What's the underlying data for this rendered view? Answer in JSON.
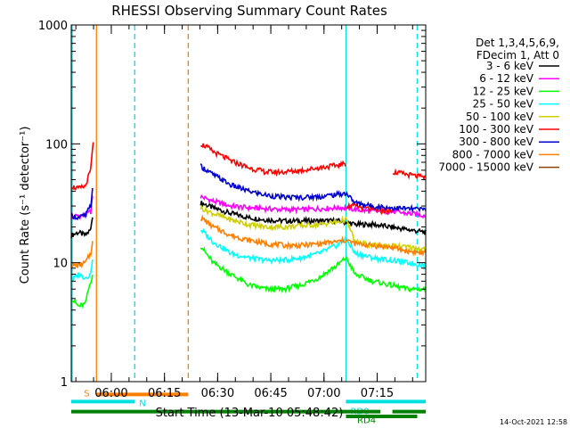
{
  "chart_data": {
    "type": "line",
    "title": "RHESSI Observing Summary Count Rates",
    "xlabel": "Start Time (13-Mar-10 05:48:42)",
    "ylabel": "Count Rate (s⁻¹ detector⁻¹)",
    "y_scale": "log",
    "ylim": [
      1,
      1000
    ],
    "xlim_minutes_from_start": [
      0,
      100
    ],
    "x_ticks": [
      {
        "label": "06:00",
        "t": 11.3
      },
      {
        "label": "06:15",
        "t": 26.3
      },
      {
        "label": "06:30",
        "t": 41.3
      },
      {
        "label": "06:45",
        "t": 56.3
      },
      {
        "label": "07:00",
        "t": 71.3
      },
      {
        "label": "07:15",
        "t": 86.3
      }
    ],
    "y_ticks": [
      {
        "label": "1",
        "value": 1
      },
      {
        "label": "10",
        "value": 10
      },
      {
        "label": "100",
        "value": 100
      },
      {
        "label": "1000",
        "value": 1000
      }
    ],
    "legend_header": [
      "Det 1,3,4,5,6,9,",
      "FDecim 1, Att 0"
    ],
    "legend_position": "right",
    "flags": [
      {
        "label": "S",
        "value": 0.78,
        "t_start": 7.1,
        "t_end": 33.0,
        "color": "#ff8000"
      },
      {
        "label": "N",
        "value": 0.68,
        "t_start": 0,
        "t_end": 17.9,
        "color": "#00e0e0"
      },
      {
        "label": "RD0",
        "value": 0.68,
        "t_start": 77.5,
        "t_end": 100,
        "color": "#00e0e0"
      },
      {
        "label": "RD4",
        "value": 0.56,
        "t_start": 0,
        "t_end": 87.2,
        "color": "#008000"
      },
      {
        "label": "",
        "value": 0.56,
        "t_start": 90.6,
        "t_end": 100,
        "color": "#008000"
      },
      {
        "label": "",
        "value": 0.51,
        "t_start": 77.5,
        "t_end": 97.6,
        "color": "#008000"
      }
    ],
    "vertical_markers": [
      {
        "t": 0.0,
        "style": "solid",
        "color": "#00e0e0"
      },
      {
        "t": 7.1,
        "style": "solid",
        "color": "#ff8000"
      },
      {
        "t": 17.9,
        "style": "dashed",
        "color": "#00e0e0"
      },
      {
        "t": 33.0,
        "style": "dashed",
        "color": "#ff8000"
      },
      {
        "t": 77.5,
        "style": "solid",
        "color": "#00e0e0"
      },
      {
        "t": 97.6,
        "style": "dashed",
        "color": "#00e0e0"
      }
    ],
    "series": [
      {
        "name": "3 - 6 keV",
        "color": "#000000",
        "segments": [
          {
            "t": [
              0,
              2,
              4,
              5.5,
              6
            ],
            "v": [
              17,
              18,
              17,
              19,
              25
            ]
          },
          {
            "t": [
              36.5,
              40,
              45,
              50,
              55,
              60,
              65,
              70,
              75,
              77.5,
              80,
              85,
              90,
              95,
              100
            ],
            "v": [
              32,
              29,
              26,
              24,
              23,
              22.5,
              22.5,
              22.5,
              22.5,
              22,
              21,
              21,
              20,
              19,
              18
            ]
          }
        ]
      },
      {
        "name": "6 - 12 keV",
        "color": "#ff00ff",
        "segments": [
          {
            "t": [
              0,
              2,
              4,
              5.5,
              6
            ],
            "v": [
              24,
              25,
              25,
              27,
              35
            ]
          },
          {
            "t": [
              36.5,
              40,
              45,
              50,
              55,
              60,
              65,
              70,
              75,
              77.5,
              80,
              85,
              90,
              95,
              100
            ],
            "v": [
              36,
              33,
              30,
              29,
              28.5,
              28,
              28,
              28.5,
              29,
              29,
              28,
              27,
              27,
              26,
              25
            ]
          }
        ]
      },
      {
        "name": "12 - 25 keV",
        "color": "#00ff00",
        "segments": [
          {
            "t": [
              0,
              2,
              4,
              5.5,
              6
            ],
            "v": [
              5,
              4.3,
              4.5,
              7,
              8
            ]
          },
          {
            "t": [
              36.5,
              38,
              40,
              45,
              50,
              55,
              60,
              65,
              70,
              75,
              77.5,
              80,
              85,
              90,
              95,
              100
            ],
            "v": [
              14,
              12,
              10,
              8,
              6.5,
              6,
              6,
              6.5,
              7.5,
              9.5,
              11,
              8,
              7,
              6.5,
              6,
              6
            ]
          }
        ]
      },
      {
        "name": "25 - 50 keV",
        "color": "#00ffff",
        "segments": [
          {
            "t": [
              0,
              2,
              4,
              5.5,
              6
            ],
            "v": [
              7,
              8,
              7.5,
              8,
              11
            ]
          },
          {
            "t": [
              36.5,
              40,
              45,
              50,
              55,
              60,
              65,
              70,
              75,
              77.5,
              80,
              85,
              90,
              95,
              100
            ],
            "v": [
              19,
              15,
              12,
              11,
              10.5,
              10.5,
              11,
              12,
              14,
              16,
              12,
              11,
              10.5,
              10,
              9.5
            ]
          }
        ]
      },
      {
        "name": "50 - 100 keV",
        "color": "#d0d000",
        "segments": [
          {
            "t": [
              36.5,
              40,
              45,
              50,
              55,
              60,
              65,
              70,
              75,
              77.5,
              80,
              85,
              90,
              95,
              100
            ],
            "v": [
              29,
              26,
              23,
              21,
              20,
              20,
              20.5,
              21,
              22,
              23,
              15,
              14,
              14,
              13.5,
              13
            ]
          }
        ]
      },
      {
        "name": "100 - 300 keV",
        "color": "#ff0000",
        "segments": [
          {
            "t": [
              0,
              2,
              4,
              5.5,
              6.2
            ],
            "v": [
              44,
              42,
              44,
              60,
              100
            ]
          },
          {
            "t": [
              36.5,
              38,
              40,
              45,
              50,
              55,
              60,
              65,
              70,
              75,
              77.4
            ],
            "v": [
              100,
              95,
              86,
              72,
              63,
              58,
              58,
              60,
              63,
              66,
              68
            ]
          },
          {
            "t": [
              77.6,
              80,
              85,
              90.5
            ],
            "v": [
              30,
              30,
              28,
              27
            ]
          },
          {
            "t": [
              90.7,
              95,
              100
            ],
            "v": [
              58,
              55,
              52
            ]
          }
        ]
      },
      {
        "name": "300 - 800 keV",
        "color": "#0000cc",
        "segments": [
          {
            "t": [
              0,
              2,
              4,
              5.5,
              6
            ],
            "v": [
              25,
              24,
              25,
              30,
              42
            ]
          },
          {
            "t": [
              36.5,
              40,
              45,
              50,
              55,
              60,
              65,
              70,
              75,
              77.5,
              80,
              85,
              90,
              95,
              100
            ],
            "v": [
              65,
              55,
              45,
              40,
              37,
              35.5,
              35.5,
              36,
              37.5,
              38.5,
              32,
              30,
              29,
              28.5,
              28
            ]
          }
        ]
      },
      {
        "name": "800 - 7000 keV",
        "color": "#ff8000",
        "segments": [
          {
            "t": [
              0,
              2,
              4,
              5.5,
              6
            ],
            "v": [
              9.5,
              9.5,
              10,
              12,
              15
            ]
          },
          {
            "t": [
              36.5,
              40,
              45,
              50,
              55,
              60,
              65,
              70,
              75,
              77.5,
              80,
              85,
              90,
              95,
              100
            ],
            "v": [
              24,
              20,
              17,
              15.5,
              14.5,
              14,
              14,
              14.5,
              15,
              15.5,
              14.5,
              14,
              13.5,
              12.5,
              12
            ]
          }
        ]
      },
      {
        "name": "7000 - 15000 keV",
        "color": "#8b4000",
        "segments": []
      }
    ],
    "grid": false
  },
  "footer_timestamp": "14-Oct-2021 12:58"
}
